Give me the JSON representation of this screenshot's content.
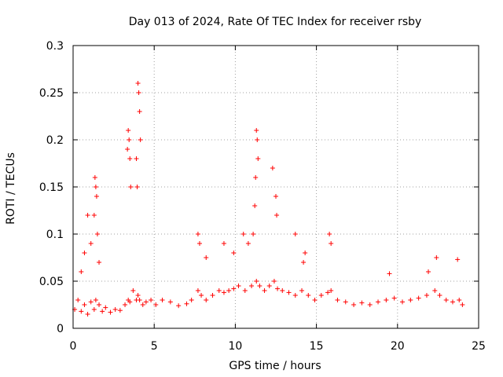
{
  "chart_data": {
    "type": "scatter",
    "title": "Day 013 of 2024, Rate Of TEC Index for receiver rsby",
    "xlabel": "GPS time / hours",
    "ylabel": "ROTI / TECUs",
    "xlim": [
      0,
      25
    ],
    "ylim": [
      0,
      0.3
    ],
    "xticks": [
      "0",
      "5",
      "10",
      "15",
      "20",
      "25"
    ],
    "xtick_values": [
      0,
      5,
      10,
      15,
      20,
      25
    ],
    "yticks": [
      "0",
      "0.05",
      "0.1",
      "0.15",
      "0.2",
      "0.25",
      "0.3"
    ],
    "ytick_values": [
      0,
      0.05,
      0.1,
      0.15,
      0.2,
      0.25,
      0.3
    ],
    "grid": true,
    "marker": "plus",
    "color": "#ff0000",
    "series": [
      {
        "name": "ROTI",
        "x": [
          0.1,
          0.3,
          0.5,
          0.7,
          0.9,
          1.1,
          1.3,
          1.4,
          1.6,
          1.8,
          2.0,
          2.3,
          2.6,
          2.9,
          3.2,
          3.4,
          3.5,
          3.7,
          3.9,
          4.0,
          4.1,
          4.3,
          4.5,
          4.8,
          5.1,
          5.5,
          6.0,
          6.5,
          7.0,
          7.3,
          7.7,
          7.9,
          8.2,
          8.6,
          9.0,
          9.3,
          9.6,
          9.9,
          10.2,
          10.6,
          11.0,
          11.3,
          11.5,
          11.8,
          12.1,
          12.4,
          12.6,
          12.9,
          13.3,
          13.7,
          14.1,
          14.5,
          14.9,
          15.3,
          15.7,
          15.9,
          16.3,
          16.8,
          17.3,
          17.8,
          18.3,
          18.8,
          19.3,
          19.8,
          20.3,
          20.8,
          21.3,
          21.8,
          22.3,
          22.6,
          23.0,
          23.4,
          23.8,
          24.0,
          1.35,
          1.4,
          1.45,
          1.5,
          1.3,
          1.6,
          3.35,
          3.4,
          3.45,
          3.5,
          3.55,
          4.0,
          4.05,
          4.1,
          4.15,
          3.9,
          3.95,
          11.3,
          11.35,
          11.4,
          11.25,
          11.2,
          12.5,
          12.55,
          12.3,
          11.1,
          10.8,
          10.5,
          9.9,
          9.3,
          7.7,
          7.8,
          8.2,
          15.8,
          15.9,
          14.2,
          14.3,
          13.7,
          0.7,
          0.9,
          1.1,
          0.5,
          22.4,
          23.7,
          21.9,
          19.5
        ],
        "y": [
          0.02,
          0.03,
          0.018,
          0.025,
          0.015,
          0.028,
          0.02,
          0.03,
          0.025,
          0.018,
          0.022,
          0.017,
          0.02,
          0.019,
          0.025,
          0.03,
          0.028,
          0.04,
          0.03,
          0.035,
          0.03,
          0.025,
          0.028,
          0.03,
          0.025,
          0.03,
          0.028,
          0.024,
          0.026,
          0.03,
          0.04,
          0.035,
          0.03,
          0.035,
          0.04,
          0.038,
          0.04,
          0.042,
          0.045,
          0.04,
          0.045,
          0.05,
          0.045,
          0.04,
          0.045,
          0.05,
          0.042,
          0.04,
          0.038,
          0.035,
          0.04,
          0.035,
          0.03,
          0.035,
          0.038,
          0.04,
          0.03,
          0.028,
          0.025,
          0.027,
          0.025,
          0.028,
          0.03,
          0.032,
          0.028,
          0.03,
          0.032,
          0.035,
          0.04,
          0.035,
          0.03,
          0.028,
          0.03,
          0.025,
          0.16,
          0.15,
          0.14,
          0.1,
          0.12,
          0.07,
          0.19,
          0.21,
          0.2,
          0.18,
          0.15,
          0.26,
          0.25,
          0.23,
          0.2,
          0.18,
          0.15,
          0.21,
          0.2,
          0.18,
          0.16,
          0.13,
          0.14,
          0.12,
          0.17,
          0.1,
          0.09,
          0.1,
          0.08,
          0.09,
          0.1,
          0.09,
          0.075,
          0.1,
          0.09,
          0.07,
          0.08,
          0.1,
          0.08,
          0.12,
          0.09,
          0.06,
          0.075,
          0.073,
          0.06,
          0.058
        ]
      }
    ]
  }
}
